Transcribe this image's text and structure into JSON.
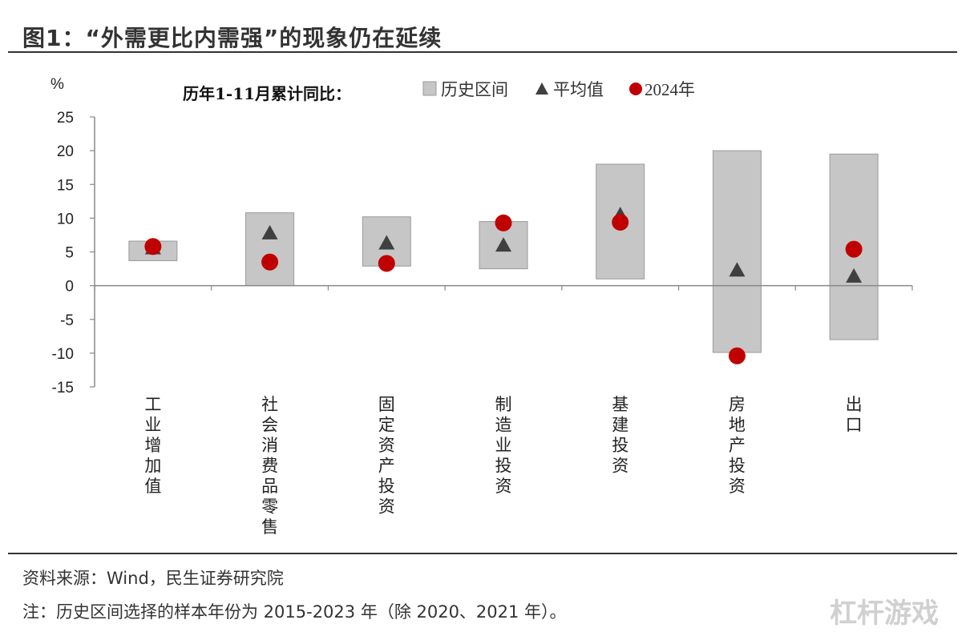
{
  "figure": {
    "title": "图1：“外需更比内需强”的现象仍在延续",
    "source": "资料来源：Wind，民生证券研究院",
    "note": "注：历史区间选择的样本年份为 2015-2023 年（除 2020、2021 年）。",
    "watermark": "杠杆游戏"
  },
  "chart_data": {
    "type": "bar",
    "title": "历年1-11月累计同比：",
    "ylabel": "%",
    "ylim": [
      -15,
      25
    ],
    "yticks": [
      25,
      20,
      15,
      10,
      5,
      0,
      -5,
      -10,
      -15
    ],
    "categories": [
      "工业增加值",
      "社会消费品零售",
      "固定资产投资",
      "制造业投资",
      "基建投资",
      "房地产投资",
      "出口"
    ],
    "legend_position": "top",
    "series": [
      {
        "name": "历史区间",
        "kind": "range",
        "color": "#c6c6c6",
        "low": [
          3.7,
          0.0,
          2.9,
          2.5,
          1.0,
          -9.9,
          -8.0
        ],
        "high": [
          6.6,
          10.8,
          10.2,
          9.5,
          18.0,
          20.0,
          19.5
        ]
      },
      {
        "name": "平均值",
        "kind": "triangle",
        "color": "#404040",
        "values": [
          5.6,
          7.8,
          6.3,
          6.0,
          10.5,
          2.3,
          1.4
        ]
      },
      {
        "name": "2024年",
        "kind": "circle",
        "color": "#c00000",
        "values": [
          5.8,
          3.5,
          3.3,
          9.3,
          9.4,
          -10.4,
          5.4
        ]
      }
    ]
  }
}
